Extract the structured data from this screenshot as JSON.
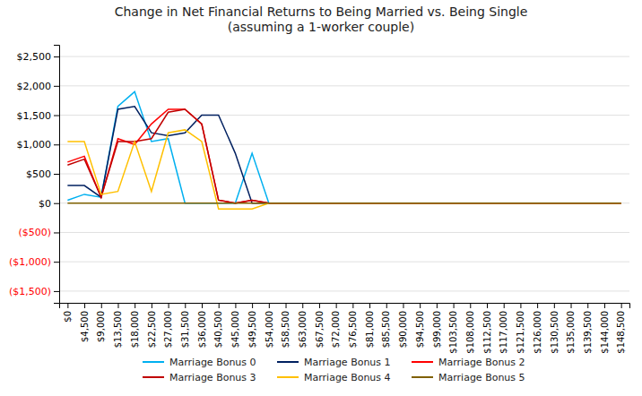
{
  "chart_data": {
    "type": "line",
    "title": "Change in Net Financial Returns to Being Married vs. Being Single\n(assuming a 1-worker couple)",
    "categories": [
      "$0",
      "$4,500",
      "$9,000",
      "$13,500",
      "$18,000",
      "$22,500",
      "$27,000",
      "$31,500",
      "$36,000",
      "$40,500",
      "$45,000",
      "$49,500",
      "$54,000",
      "$58,500",
      "$63,000",
      "$67,500",
      "$72,000",
      "$76,500",
      "$81,000",
      "$85,500",
      "$90,000",
      "$94,500",
      "$99,000",
      "$103,500",
      "$108,000",
      "$112,500",
      "$117,000",
      "$121,500",
      "$126,000",
      "$130,500",
      "$135,000",
      "$139,500",
      "$144,000",
      "$148,500"
    ],
    "series": [
      {
        "name": "Marriage Bonus 0",
        "color": "#00B0F0",
        "values": [
          50,
          150,
          100,
          1650,
          1900,
          1050,
          1100,
          0,
          0,
          0,
          0,
          850,
          0,
          0,
          0,
          0,
          0,
          0,
          0,
          0,
          0,
          0,
          0,
          0,
          0,
          0,
          0,
          0,
          0,
          0,
          0,
          0,
          0,
          0
        ]
      },
      {
        "name": "Marriage Bonus 1",
        "color": "#002060",
        "values": [
          300,
          300,
          100,
          1600,
          1650,
          1200,
          1150,
          1200,
          1500,
          1500,
          850,
          0,
          0,
          0,
          0,
          0,
          0,
          0,
          0,
          0,
          0,
          0,
          0,
          0,
          0,
          0,
          0,
          0,
          0,
          0,
          0,
          0,
          0,
          0
        ]
      },
      {
        "name": "Marriage Bonus 2",
        "color": "#FF0000",
        "values": [
          700,
          800,
          100,
          1100,
          1000,
          1350,
          1600,
          1600,
          1350,
          50,
          0,
          50,
          0,
          0,
          0,
          0,
          0,
          0,
          0,
          0,
          0,
          0,
          0,
          0,
          0,
          0,
          0,
          0,
          0,
          0,
          0,
          0,
          0,
          0
        ]
      },
      {
        "name": "Marriage Bonus 3",
        "color": "#C00000",
        "values": [
          650,
          750,
          100,
          1050,
          1050,
          1100,
          1550,
          1600,
          1350,
          50,
          0,
          50,
          0,
          0,
          0,
          0,
          0,
          0,
          0,
          0,
          0,
          0,
          0,
          0,
          0,
          0,
          0,
          0,
          0,
          0,
          0,
          0,
          0,
          0
        ]
      },
      {
        "name": "Marriage Bonus 4",
        "color": "#FFC000",
        "values": [
          1050,
          1050,
          150,
          200,
          1050,
          200,
          1200,
          1250,
          1050,
          -100,
          -100,
          -100,
          0,
          0,
          0,
          0,
          0,
          0,
          0,
          0,
          0,
          0,
          0,
          0,
          0,
          0,
          0,
          0,
          0,
          0,
          0,
          0,
          0,
          0
        ]
      },
      {
        "name": "Marriage Bonus 5",
        "color": "#7F6000",
        "values": [
          0,
          0,
          0,
          0,
          0,
          0,
          0,
          0,
          0,
          0,
          0,
          0,
          0,
          0,
          0,
          0,
          0,
          0,
          0,
          0,
          0,
          0,
          0,
          0,
          0,
          0,
          0,
          0,
          0,
          0,
          0,
          0,
          0,
          0
        ]
      }
    ],
    "ylim": [
      -1700,
      2700
    ],
    "yticks": [
      {
        "value": -1500,
        "label": "($1,500)"
      },
      {
        "value": -1000,
        "label": "($1,000)"
      },
      {
        "value": -500,
        "label": "($500)"
      },
      {
        "value": 0,
        "label": "$0"
      },
      {
        "value": 500,
        "label": "$500"
      },
      {
        "value": 1000,
        "label": "$1,000"
      },
      {
        "value": 1500,
        "label": "$1,500"
      },
      {
        "value": 2000,
        "label": "$2,000"
      },
      {
        "value": 2500,
        "label": "$2,500"
      }
    ],
    "grid": true,
    "legend": "bottom"
  }
}
